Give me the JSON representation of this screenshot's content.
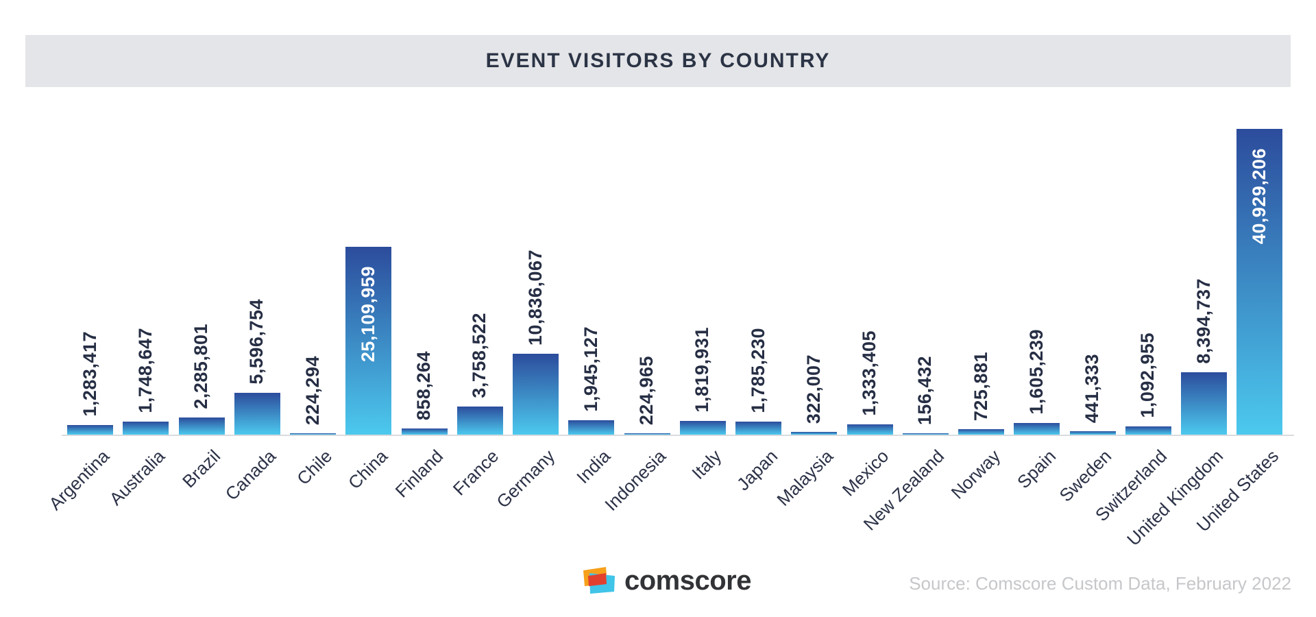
{
  "title": "EVENT VISITORS BY COUNTRY",
  "chart_data": {
    "type": "bar",
    "title": "EVENT VISITORS BY COUNTRY",
    "xlabel": "",
    "ylabel": "",
    "ylim": [
      0,
      41000000
    ],
    "grid": false,
    "legend": null,
    "categories": [
      "Argentina",
      "Australia",
      "Brazil",
      "Canada",
      "Chile",
      "China",
      "Finland",
      "France",
      "Germany",
      "India",
      "Indonesia",
      "Italy",
      "Japan",
      "Malaysia",
      "Mexico",
      "New Zealand",
      "Norway",
      "Spain",
      "Sweden",
      "Switzerland",
      "United Kingdom",
      "United States"
    ],
    "values": [
      1283417,
      1748647,
      2285801,
      5596754,
      224294,
      25109959,
      858264,
      3758522,
      10836067,
      1945127,
      224965,
      1819931,
      1785230,
      322007,
      1333405,
      156432,
      725881,
      1605239,
      441333,
      1092955,
      8394737,
      40929206
    ],
    "label_inside": [
      "China",
      "United States"
    ],
    "bar_gradient": {
      "top": "#2c4c9c",
      "bottom": "#4cc9ee"
    },
    "value_label_color": "#262e44",
    "value_label_inside_color": "#ffffff",
    "axis_label_color": "#2c3247"
  },
  "footer": {
    "logo_text": "comscore",
    "source": "Source: Comscore Custom Data, February 2022",
    "logo_colors": {
      "orange": "#f6a01b",
      "red": "#e2402f",
      "cyan": "#40c4e8"
    }
  },
  "colors": {
    "title_band_bg": "#e4e5e8",
    "title_text": "#2b3445",
    "axis_line": "#d9dbde",
    "source_text": "#c5c7ca"
  }
}
